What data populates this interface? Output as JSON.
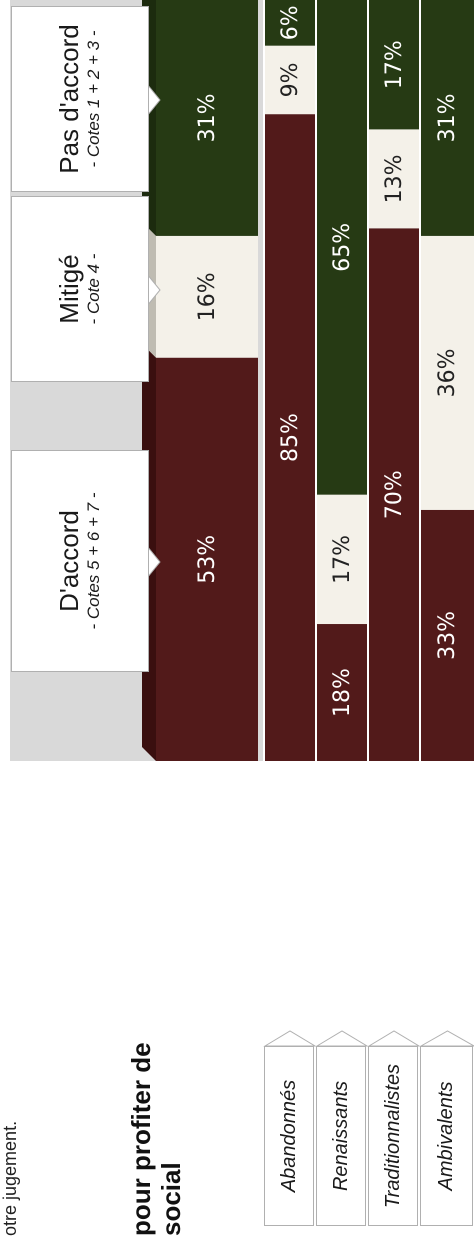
{
  "intro_text": "otre jugement.",
  "heading": {
    "line1": "pour profiter de",
    "line2": "social"
  },
  "colors": {
    "agree": "#521a1a",
    "mixed": "#f4f1e9",
    "disagree": "#263a14",
    "panel": "#d9d9d9"
  },
  "callouts": {
    "agree": {
      "main": "D'accord",
      "sub": "- Cotes 5 + 6 + 7 -"
    },
    "mixed": {
      "main": "Mitigé",
      "sub": "- Cote 4 -"
    },
    "disagree": {
      "main": "Pas d'accord",
      "sub": "- Cotes 1 + 2 + 3 -"
    }
  },
  "chart_data": {
    "type": "bar",
    "orientation": "stacked 100%",
    "categories": [
      "",
      "Abandonnés",
      "Renaissants",
      "Traditionnalistes",
      "Ambivalents"
    ],
    "series": [
      {
        "name": "D'accord",
        "values": [
          53,
          85,
          18,
          70,
          33
        ],
        "labels": [
          "53%",
          "85%",
          "18%",
          "70%",
          "33%"
        ]
      },
      {
        "name": "Mitigé",
        "values": [
          16,
          9,
          17,
          13,
          36
        ],
        "labels": [
          "16%",
          "9%",
          "17%",
          "13%",
          "36%"
        ]
      },
      {
        "name": "Pas d'accord",
        "values": [
          31,
          6,
          65,
          17,
          31
        ],
        "labels": [
          "31%",
          "6%",
          "65%",
          "17%",
          "31%"
        ]
      }
    ],
    "legend": "callouts above the total bar"
  }
}
